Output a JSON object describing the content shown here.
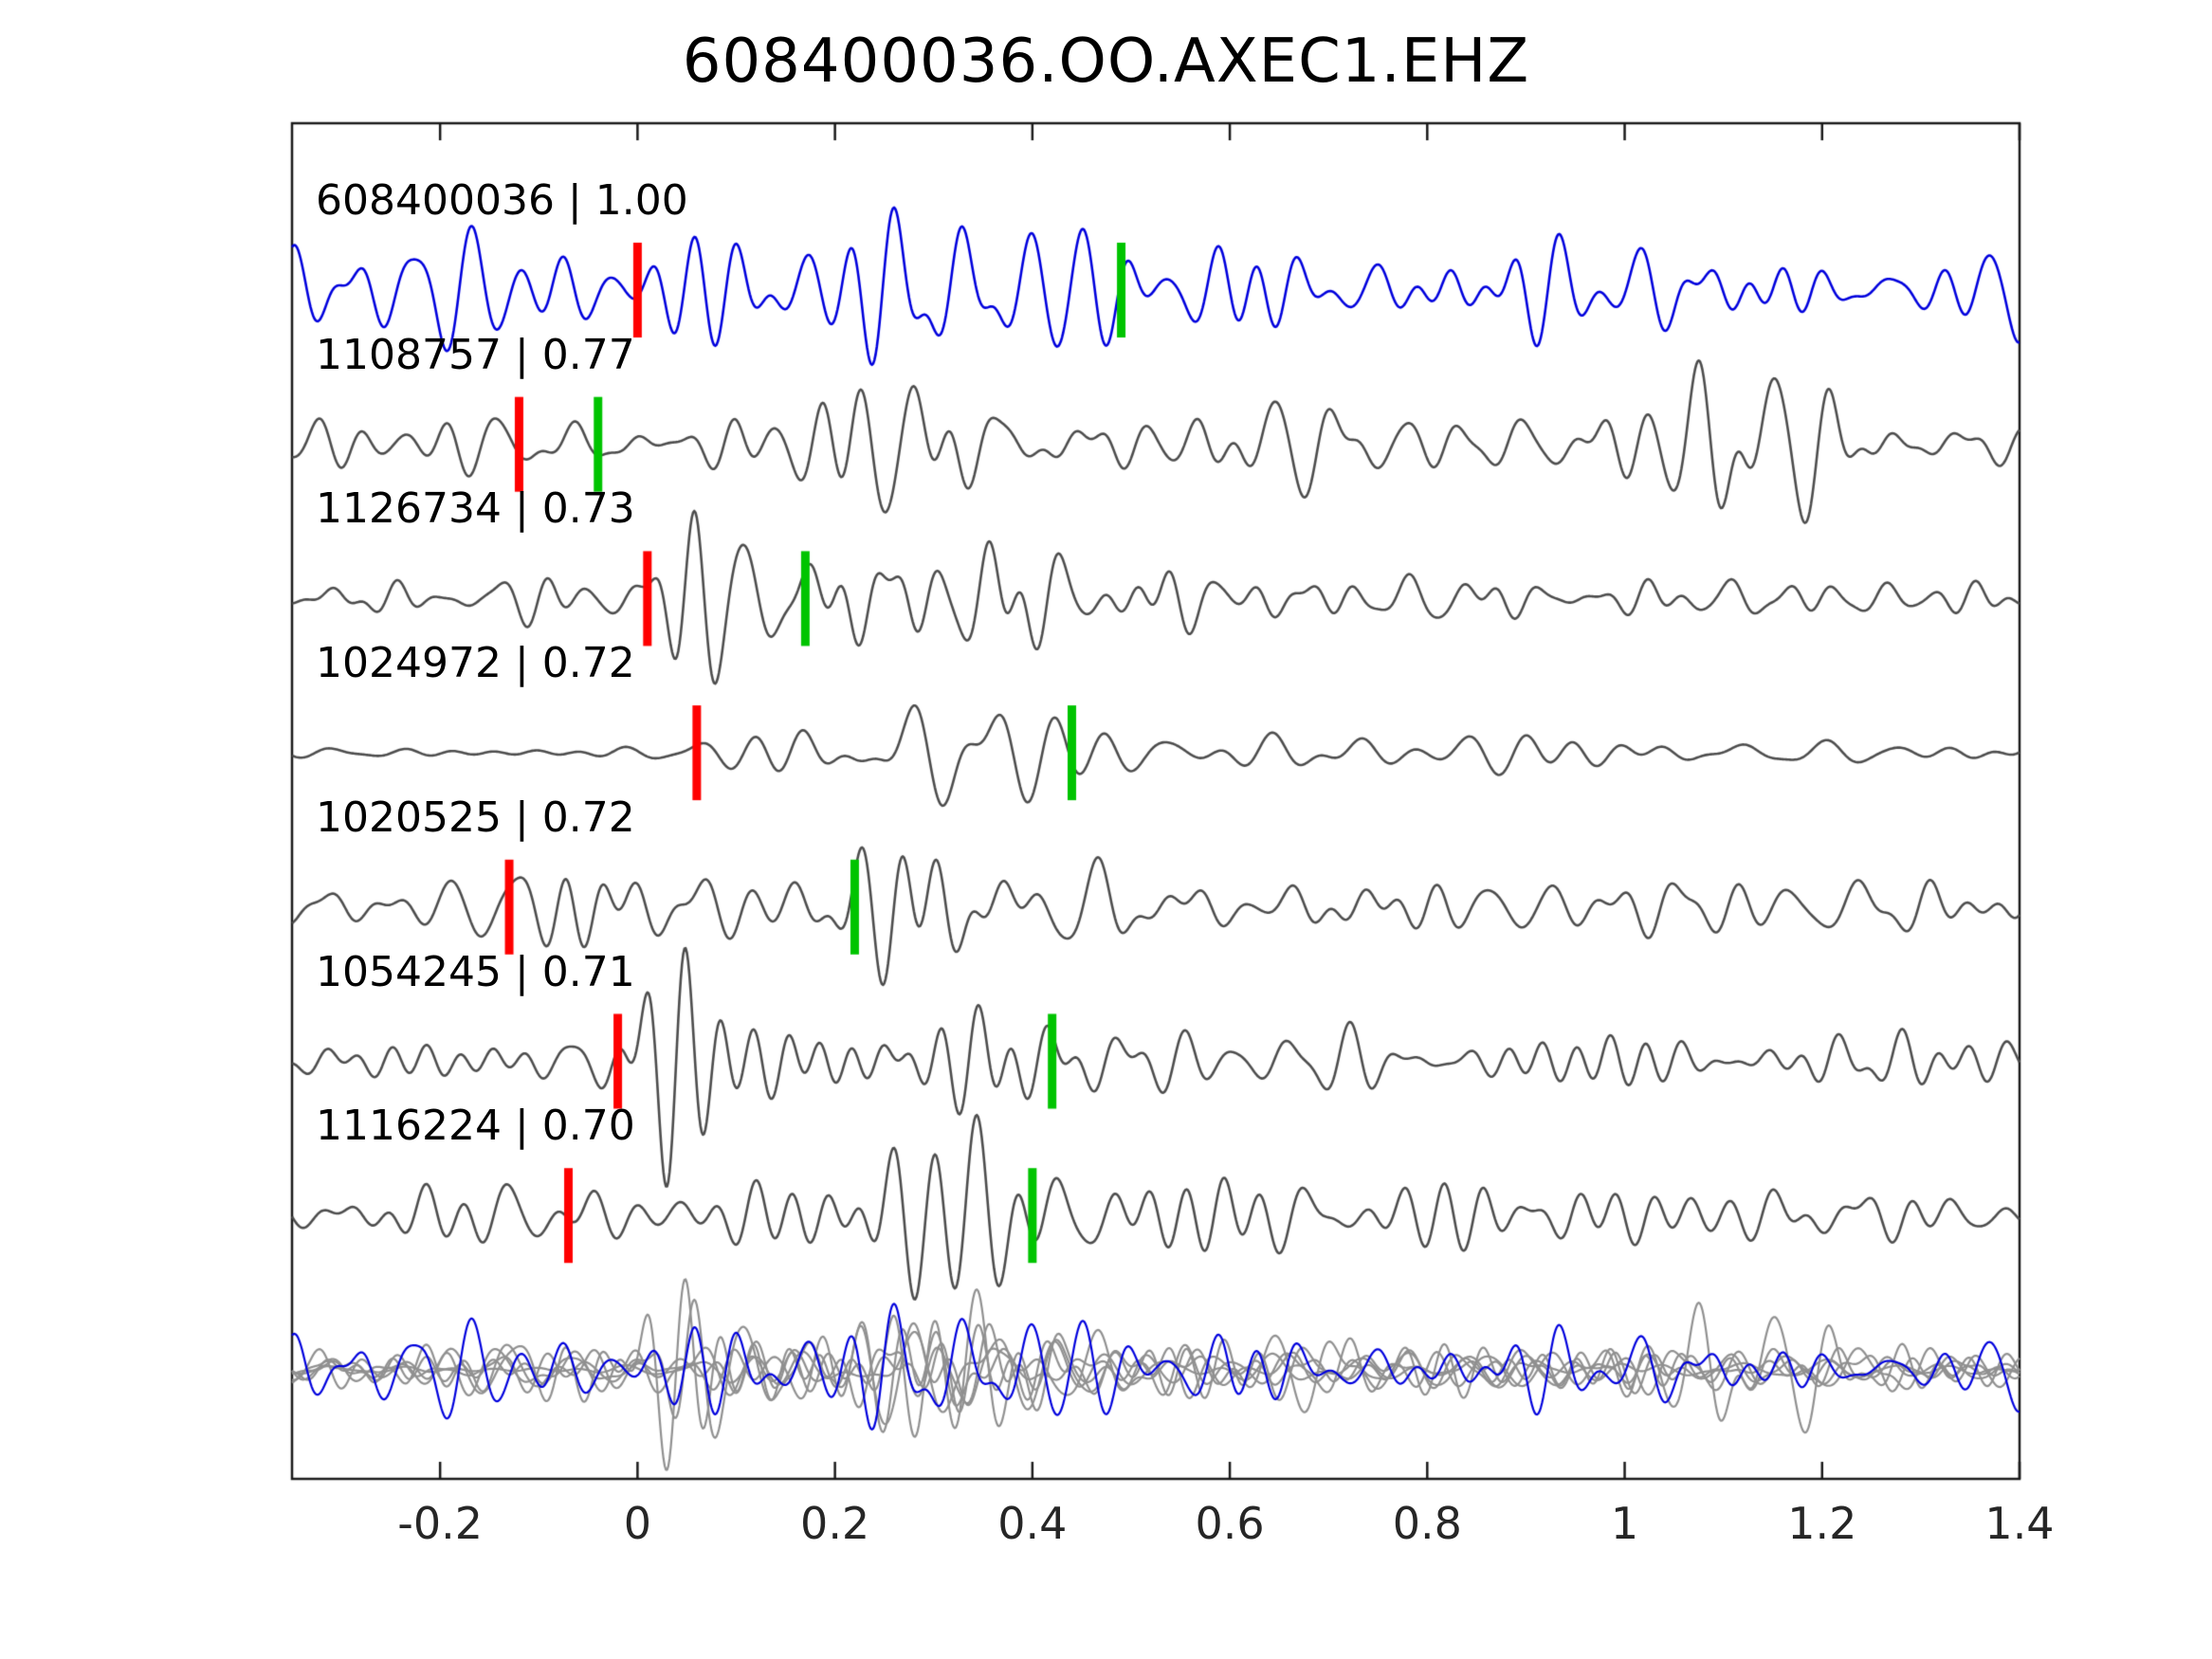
{
  "title": "608400036.OO.AXEC1.EHZ",
  "chart_data": {
    "type": "line",
    "title": "608400036.OO.AXEC1.EHZ",
    "xlabel": "",
    "ylabel": "",
    "xlim": [
      -0.35,
      1.4
    ],
    "grid": false,
    "legend": "none",
    "x_ticks": [
      "-0.2",
      "0",
      "0.2",
      "0.4",
      "0.6",
      "0.8",
      "1",
      "1.2",
      "1.4"
    ],
    "x_tick_values": [
      -0.2,
      0,
      0.2,
      0.4,
      0.6,
      0.8,
      1.0,
      1.2,
      1.4
    ],
    "colors": {
      "template": "#0000dd",
      "match": "#4d4d4d",
      "overlay_gray": "#909090",
      "pick_red": "#ff0000",
      "pick_green": "#00c400",
      "axis": "#1a1a1a",
      "tick_text": "#262626"
    },
    "traces": [
      {
        "label": "608400036 | 1.00",
        "event_id": "608400036",
        "correlation": "1.00",
        "type": "template",
        "picks": {
          "red": 0.0,
          "green": 0.49
        },
        "synth": {
          "seed": 42,
          "freq": 21,
          "noise": 0.6,
          "bumps": [
            [
              0.28,
              0.17,
              0.45
            ],
            [
              0.95,
              0.6,
              0.08
            ]
          ]
        }
      },
      {
        "label": "1108757 | 0.77",
        "event_id": "1108757",
        "correlation": "0.77",
        "type": "match",
        "picks": {
          "red": -0.12,
          "green": -0.04
        },
        "synth": {
          "seed": 7,
          "freq": 20,
          "noise": 0.3,
          "bumps": [
            [
              0.25,
              0.13,
              0.5
            ],
            [
              0.55,
              0.3,
              0.12
            ],
            [
              1.13,
              0.13,
              0.75
            ]
          ]
        }
      },
      {
        "label": "1126734 | 0.73",
        "event_id": "1126734",
        "correlation": "0.73",
        "type": "match",
        "picks": {
          "red": 0.01,
          "green": 0.17
        },
        "synth": {
          "seed": 13,
          "freq": 22,
          "noise": 0.26,
          "bumps": [
            [
              0.05,
              0.05,
              0.7
            ],
            [
              0.28,
              0.14,
              0.72
            ],
            [
              0.5,
              0.25,
              0.2
            ]
          ]
        }
      },
      {
        "label": "1024972 | 0.72",
        "event_id": "1024972",
        "correlation": "0.72",
        "type": "match",
        "picks": {
          "red": 0.06,
          "green": 0.44
        },
        "synth": {
          "seed": 21,
          "freq": 19,
          "noise": 0.05,
          "bumps": [
            [
              0.26,
              0.12,
              1.05
            ],
            [
              0.55,
              0.28,
              0.3
            ],
            [
              1.05,
              0.45,
              0.22
            ]
          ]
        }
      },
      {
        "label": "1020525 | 0.72",
        "event_id": "1020525",
        "correlation": "0.72",
        "type": "match",
        "picks": {
          "red": -0.13,
          "green": 0.22
        },
        "synth": {
          "seed": 5,
          "freq": 20,
          "noise": 0.3,
          "bumps": [
            [
              -0.07,
              0.05,
              0.45
            ],
            [
              0.27,
              0.12,
              1.0
            ],
            [
              0.55,
              0.25,
              0.25
            ]
          ]
        }
      },
      {
        "label": "1054245 | 0.71",
        "event_id": "1054245",
        "correlation": "0.71",
        "type": "match",
        "picks": {
          "red": -0.02,
          "green": 0.42
        },
        "synth": {
          "seed": 29,
          "freq": 21,
          "noise": 0.26,
          "bumps": [
            [
              0.03,
              0.05,
              0.75
            ],
            [
              0.27,
              0.13,
              0.7
            ],
            [
              0.55,
              0.3,
              0.2
            ]
          ]
        }
      },
      {
        "label": "1116224 | 0.70",
        "event_id": "1116224",
        "correlation": "0.70",
        "type": "match",
        "picks": {
          "red": -0.07,
          "green": 0.4
        },
        "synth": {
          "seed": 77,
          "freq": 20,
          "noise": 0.3,
          "bumps": [
            [
              0.3,
              0.08,
              1.0
            ],
            [
              0.16,
              0.1,
              0.25
            ],
            [
              0.65,
              0.35,
              0.18
            ]
          ]
        }
      }
    ],
    "overlay_row": {
      "description": "all matched traces overlaid in gray with blue template on top",
      "scale": 0.8
    }
  }
}
